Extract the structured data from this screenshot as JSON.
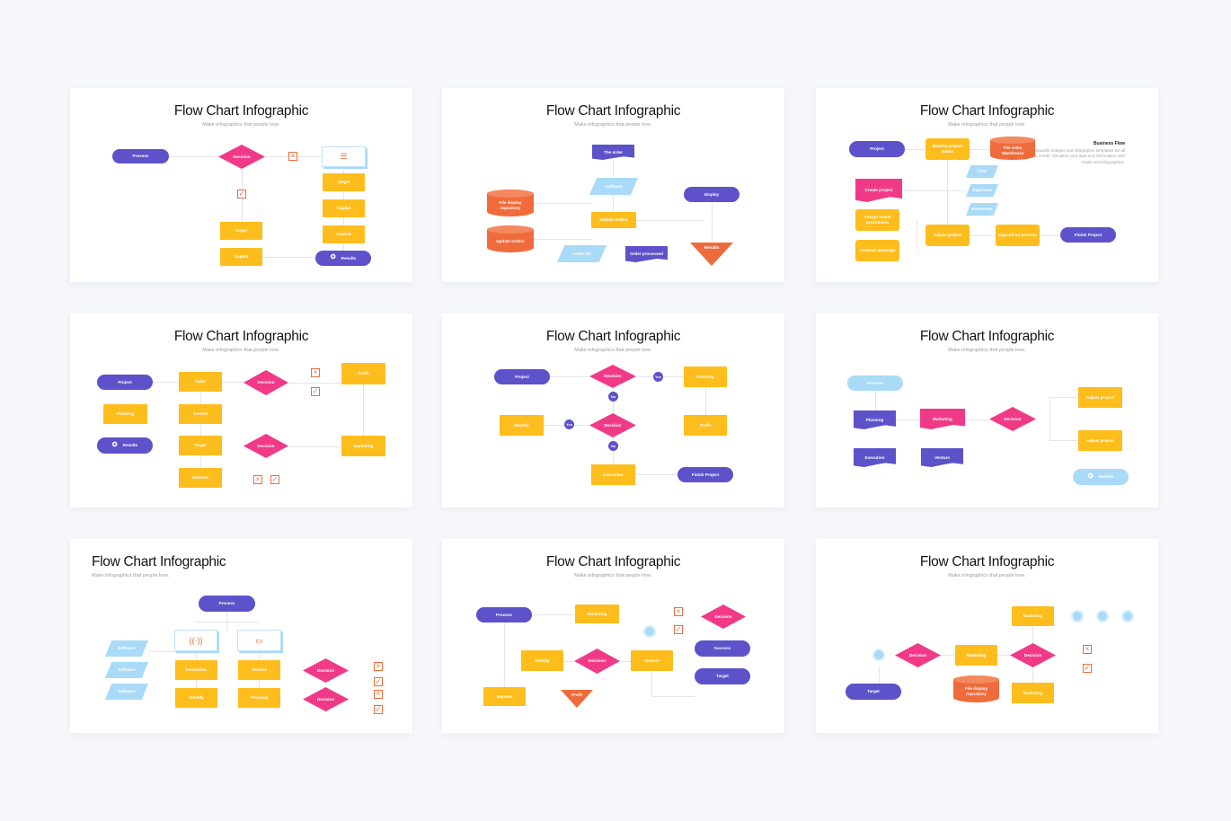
{
  "colors": {
    "purple": "#5d52c9",
    "pink": "#f03a88",
    "yellow": "#fdbd1c",
    "light_blue": "#a9daf8",
    "orange": "#f06b3b",
    "background": "#f6f7fb"
  },
  "slides": [
    {
      "title": "Flow Chart Infographic",
      "subtitle": "Make infographics that people love.",
      "nodes": [
        {
          "label": "Process",
          "shape": "pill"
        },
        {
          "label": "Decision",
          "shape": "diamond"
        },
        {
          "label": "",
          "shape": "icon",
          "icon": "x-box-icon"
        },
        {
          "label": "",
          "shape": "box",
          "icon": "list-icon"
        },
        {
          "label": "Target",
          "shape": "rect"
        },
        {
          "label": "Capital",
          "shape": "rect"
        },
        {
          "label": "Control",
          "shape": "rect"
        },
        {
          "label": "",
          "shape": "icon",
          "icon": "check-box-icon"
        },
        {
          "label": "Target",
          "shape": "rect"
        },
        {
          "label": "Capital",
          "shape": "rect"
        },
        {
          "label": "Results",
          "shape": "pill",
          "icon": "award-icon"
        }
      ]
    },
    {
      "title": "Flow Chart Infographic",
      "subtitle": "Make infographics that people love.",
      "nodes": [
        {
          "label": "The order",
          "shape": "doc"
        },
        {
          "label": "Software",
          "shape": "para"
        },
        {
          "label": "File display repository",
          "shape": "cyl"
        },
        {
          "label": "Update orders",
          "shape": "rect"
        },
        {
          "label": "Display",
          "shape": "pill"
        },
        {
          "label": "Update orders",
          "shape": "cyl"
        },
        {
          "label": "Order file",
          "shape": "para"
        },
        {
          "label": "Order processed",
          "shape": "doc"
        },
        {
          "label": "Results",
          "shape": "tri"
        }
      ]
    },
    {
      "title": "Flow Chart Infographic",
      "subtitle": "Make infographics that people love.",
      "business_flow": {
        "heading": "Business Flow",
        "text": "Beautiful designs and infographic templates for all your needs. Visualize your data and information with charts and infographics."
      },
      "nodes": [
        {
          "label": "Project",
          "shape": "pill"
        },
        {
          "label": "Monitor project status",
          "shape": "rect"
        },
        {
          "label": "The order Warehouse",
          "shape": "cyl"
        },
        {
          "label": "Time",
          "shape": "para"
        },
        {
          "label": "Expenses",
          "shape": "para"
        },
        {
          "label": "Resources",
          "shape": "para"
        },
        {
          "label": "Create project",
          "shape": "doc-pink"
        },
        {
          "label": "Assign tasks/ procedures",
          "shape": "rect"
        },
        {
          "label": "Conduct meetings",
          "shape": "rect"
        },
        {
          "label": "Adjust project",
          "shape": "rect"
        },
        {
          "label": "Sign-off on process",
          "shape": "rect"
        },
        {
          "label": "Finish Project",
          "shape": "pill"
        }
      ]
    },
    {
      "title": "Flow Chart Infographic",
      "subtitle": "Make infographics that people love.",
      "nodes": [
        {
          "label": "Project",
          "shape": "pill"
        },
        {
          "label": "Sales",
          "shape": "rect"
        },
        {
          "label": "Decision",
          "shape": "diamond"
        },
        {
          "label": "",
          "shape": "icon",
          "icon": "x-box-icon"
        },
        {
          "label": "",
          "shape": "icon",
          "icon": "check-box-icon"
        },
        {
          "label": "Profit",
          "shape": "rect"
        },
        {
          "label": "Planning",
          "shape": "rect"
        },
        {
          "label": "Control",
          "shape": "rect"
        },
        {
          "label": "Results",
          "shape": "pill",
          "icon": "award-icon"
        },
        {
          "label": "Target",
          "shape": "rect"
        },
        {
          "label": "Decision",
          "shape": "diamond"
        },
        {
          "label": "Marketing",
          "shape": "rect"
        },
        {
          "label": "Success",
          "shape": "rect"
        },
        {
          "label": "",
          "shape": "icon",
          "icon": "x-box-icon"
        },
        {
          "label": "",
          "shape": "icon",
          "icon": "check-box-icon"
        }
      ]
    },
    {
      "title": "Flow Chart Infographic",
      "subtitle": "Make infographics that people love.",
      "nodes": [
        {
          "label": "Project",
          "shape": "pill"
        },
        {
          "label": "Decision",
          "shape": "diamond"
        },
        {
          "label": "Yes",
          "shape": "yn"
        },
        {
          "label": "Planning",
          "shape": "rect"
        },
        {
          "label": "No",
          "shape": "yn"
        },
        {
          "label": "Identify",
          "shape": "rect"
        },
        {
          "label": "Yes",
          "shape": "yn"
        },
        {
          "label": "Decision",
          "shape": "diamond"
        },
        {
          "label": "Profit",
          "shape": "rect"
        },
        {
          "label": "No",
          "shape": "yn"
        },
        {
          "label": "Execution",
          "shape": "rect"
        },
        {
          "label": "Finish Project",
          "shape": "pill"
        }
      ]
    },
    {
      "title": "Flow Chart Infographic",
      "subtitle": "Make infographics that people love.",
      "nodes": [
        {
          "label": "Process",
          "shape": "pill-light"
        },
        {
          "label": "Planning",
          "shape": "doc"
        },
        {
          "label": "Marketing",
          "shape": "doc-pink"
        },
        {
          "label": "Decision",
          "shape": "diamond"
        },
        {
          "label": "Adjust project",
          "shape": "rect"
        },
        {
          "label": "Adjust project",
          "shape": "rect"
        },
        {
          "label": "Execution",
          "shape": "doc"
        },
        {
          "label": "Venture",
          "shape": "doc"
        },
        {
          "label": "Results",
          "shape": "pill-light",
          "icon": "award-icon"
        }
      ]
    },
    {
      "title": "Flow Chart Infographic",
      "subtitle": "Make infographics that people love.",
      "align": "left",
      "nodes": [
        {
          "label": "Process",
          "shape": "pill"
        },
        {
          "label": "",
          "shape": "box",
          "icon": "antenna-icon"
        },
        {
          "label": "",
          "shape": "box",
          "icon": "laptop-icon"
        },
        {
          "label": "Software",
          "shape": "para"
        },
        {
          "label": "Software",
          "shape": "para"
        },
        {
          "label": "Software",
          "shape": "para"
        },
        {
          "label": "Innovation",
          "shape": "rect"
        },
        {
          "label": "Venture",
          "shape": "rect"
        },
        {
          "label": "Identify",
          "shape": "rect"
        },
        {
          "label": "Planning",
          "shape": "rect"
        },
        {
          "label": "Decision",
          "shape": "diamond"
        },
        {
          "label": "Decision",
          "shape": "diamond"
        },
        {
          "label": "",
          "shape": "icon",
          "icon": "x-box-icon"
        },
        {
          "label": "",
          "shape": "icon",
          "icon": "check-box-icon"
        },
        {
          "label": "",
          "shape": "icon",
          "icon": "x-box-icon"
        },
        {
          "label": "",
          "shape": "icon",
          "icon": "check-box-icon"
        }
      ]
    },
    {
      "title": "Flow Chart Infographic",
      "subtitle": "Make infographics that people love.",
      "nodes": [
        {
          "label": "Process",
          "shape": "pill"
        },
        {
          "label": "Marketing",
          "shape": "rect"
        },
        {
          "label": "",
          "shape": "ring"
        },
        {
          "label": "",
          "shape": "icon",
          "icon": "x-box-icon"
        },
        {
          "label": "",
          "shape": "icon",
          "icon": "check-box-icon"
        },
        {
          "label": "Decision",
          "shape": "diamond"
        },
        {
          "label": "Success",
          "shape": "pill"
        },
        {
          "label": "Target",
          "shape": "pill"
        },
        {
          "label": "Identify",
          "shape": "rect"
        },
        {
          "label": "Decision",
          "shape": "diamond"
        },
        {
          "label": "Venture",
          "shape": "rect"
        },
        {
          "label": "Improve",
          "shape": "rect"
        },
        {
          "label": "Profit",
          "shape": "tri"
        }
      ]
    },
    {
      "title": "Flow Chart Infographic",
      "subtitle": "Make infographics that people love.",
      "nodes": [
        {
          "label": "Marketing",
          "shape": "rect"
        },
        {
          "label": "",
          "shape": "ring",
          "icon": "clock-icon"
        },
        {
          "label": "",
          "shape": "ring",
          "icon": "mail-icon"
        },
        {
          "label": "",
          "shape": "ring",
          "icon": "globe-icon"
        },
        {
          "label": "",
          "shape": "ring"
        },
        {
          "label": "Decision",
          "shape": "diamond"
        },
        {
          "label": "Marketing",
          "shape": "rect"
        },
        {
          "label": "Decision",
          "shape": "diamond"
        },
        {
          "label": "",
          "shape": "icon",
          "icon": "x-box-icon"
        },
        {
          "label": "",
          "shape": "icon",
          "icon": "check-box-icon"
        },
        {
          "label": "Target",
          "shape": "pill"
        },
        {
          "label": "File display repository",
          "shape": "cyl"
        },
        {
          "label": "Marketing",
          "shape": "rect"
        }
      ]
    }
  ]
}
